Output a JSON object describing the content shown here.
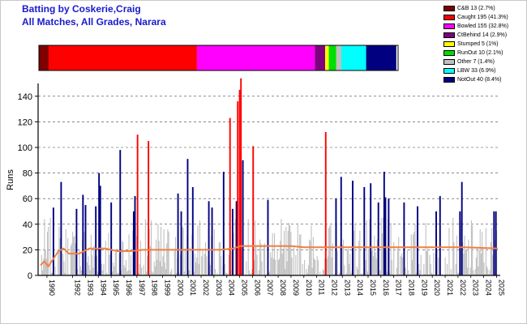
{
  "title_line1": "Batting by Coskerie,Craig",
  "title_line2": "All Matches, All Grades, Narara",
  "legend": [
    {
      "label": "C&B 13 (2.7%)",
      "color": "#800000",
      "fraction": 0.027
    },
    {
      "label": "Caught 195 (41.3%)",
      "color": "#ff0000",
      "fraction": 0.413
    },
    {
      "label": "Bowled 155 (32.8%)",
      "color": "#ff00ff",
      "fraction": 0.328
    },
    {
      "label": "CtBehind 14 (2.9%)",
      "color": "#800080",
      "fraction": 0.029
    },
    {
      "label": "Stumped 5 (1%)",
      "color": "#ffff00",
      "fraction": 0.01
    },
    {
      "label": "RunOut 10 (2.1%)",
      "color": "#00dd00",
      "fraction": 0.021
    },
    {
      "label": "Other 7 (1.4%)",
      "color": "#c0c0c0",
      "fraction": 0.014
    },
    {
      "label": "LBW 33 (6.9%)",
      "color": "#00ffff",
      "fraction": 0.069
    },
    {
      "label": "NotOut 40 (8.4%)",
      "color": "#000080",
      "fraction": 0.084
    }
  ],
  "chart_data": {
    "type": "bar",
    "ylabel": "Runs",
    "ylim": [
      0,
      150
    ],
    "yticks": [
      "0",
      "20",
      "40",
      "60",
      "80",
      "100",
      "120",
      "140"
    ],
    "grid": "horizontal dashed",
    "xlabels": [
      "1990",
      "1992",
      "1993",
      "1994",
      "1995",
      "1996",
      "1997",
      "1998",
      "1999",
      "2000",
      "2001",
      "2002",
      "2003",
      "2004",
      "2005",
      "2006",
      "2007",
      "2008",
      "2009",
      "2010",
      "2011",
      "2012",
      "2013",
      "2014",
      "2015",
      "2016",
      "2017",
      "2018",
      "2019",
      "2020",
      "2021",
      "2022",
      "2023",
      "2024",
      "2025"
    ],
    "xlabel_years": [
      1990,
      1992,
      1993,
      1994,
      1995,
      1996,
      1997,
      1998,
      1999,
      2000,
      2001,
      2002,
      2003,
      2004,
      2005,
      2006,
      2007,
      2008,
      2009,
      2010,
      2011,
      2012,
      2013,
      2014,
      2015,
      2016,
      2017,
      2018,
      2019,
      2020,
      2021,
      2022,
      2023,
      2024,
      2025
    ],
    "x_year_range": [
      1990,
      2025.6
    ],
    "highlight_bars": [
      {
        "year": 1991.0,
        "runs": 53,
        "type": "NotOut"
      },
      {
        "year": 1991.6,
        "runs": 73,
        "type": "NotOut"
      },
      {
        "year": 1992.8,
        "runs": 52,
        "type": "NotOut"
      },
      {
        "year": 1993.3,
        "runs": 63,
        "type": "NotOut"
      },
      {
        "year": 1993.5,
        "runs": 55,
        "type": "NotOut"
      },
      {
        "year": 1994.3,
        "runs": 54,
        "type": "NotOut"
      },
      {
        "year": 1994.55,
        "runs": 80,
        "type": "NotOut"
      },
      {
        "year": 1994.65,
        "runs": 70,
        "type": "NotOut"
      },
      {
        "year": 1995.5,
        "runs": 57,
        "type": "NotOut"
      },
      {
        "year": 1996.2,
        "runs": 98,
        "type": "NotOut"
      },
      {
        "year": 1997.25,
        "runs": 50,
        "type": "NotOut"
      },
      {
        "year": 1997.35,
        "runs": 62,
        "type": "NotOut"
      },
      {
        "year": 1997.55,
        "runs": 110,
        "type": "Caught"
      },
      {
        "year": 1998.4,
        "runs": 105,
        "type": "Caught"
      },
      {
        "year": 2000.7,
        "runs": 64,
        "type": "NotOut"
      },
      {
        "year": 2000.95,
        "runs": 50,
        "type": "NotOut"
      },
      {
        "year": 2001.45,
        "runs": 91,
        "type": "NotOut"
      },
      {
        "year": 2001.85,
        "runs": 69,
        "type": "NotOut"
      },
      {
        "year": 2003.1,
        "runs": 58,
        "type": "NotOut"
      },
      {
        "year": 2003.35,
        "runs": 53,
        "type": "NotOut"
      },
      {
        "year": 2004.25,
        "runs": 81,
        "type": "NotOut"
      },
      {
        "year": 2004.75,
        "runs": 123,
        "type": "Caught"
      },
      {
        "year": 2004.95,
        "runs": 52,
        "type": "NotOut"
      },
      {
        "year": 2005.25,
        "runs": 58,
        "type": "NotOut"
      },
      {
        "year": 2005.35,
        "runs": 136,
        "type": "Caught"
      },
      {
        "year": 2005.5,
        "runs": 145,
        "type": "Caught"
      },
      {
        "year": 2005.6,
        "runs": 154,
        "type": "Caught"
      },
      {
        "year": 2005.75,
        "runs": 90,
        "type": "NotOut"
      },
      {
        "year": 2006.55,
        "runs": 101,
        "type": "Caught"
      },
      {
        "year": 2007.7,
        "runs": 59,
        "type": "NotOut"
      },
      {
        "year": 2012.2,
        "runs": 112,
        "type": "Caught"
      },
      {
        "year": 2013.0,
        "runs": 60,
        "type": "NotOut"
      },
      {
        "year": 2013.4,
        "runs": 77,
        "type": "NotOut"
      },
      {
        "year": 2014.3,
        "runs": 74,
        "type": "NotOut"
      },
      {
        "year": 2015.2,
        "runs": 69,
        "type": "NotOut"
      },
      {
        "year": 2015.7,
        "runs": 72,
        "type": "NotOut"
      },
      {
        "year": 2016.3,
        "runs": 57,
        "type": "NotOut"
      },
      {
        "year": 2016.75,
        "runs": 81,
        "type": "NotOut"
      },
      {
        "year": 2016.85,
        "runs": 61,
        "type": "NotOut"
      },
      {
        "year": 2017.1,
        "runs": 60,
        "type": "NotOut"
      },
      {
        "year": 2018.3,
        "runs": 57,
        "type": "NotOut"
      },
      {
        "year": 2019.35,
        "runs": 54,
        "type": "NotOut"
      },
      {
        "year": 2020.8,
        "runs": 50,
        "type": "NotOut"
      },
      {
        "year": 2021.1,
        "runs": 62,
        "type": "NotOut"
      },
      {
        "year": 2022.65,
        "runs": 50,
        "type": "NotOut"
      },
      {
        "year": 2022.8,
        "runs": 73,
        "type": "NotOut"
      },
      {
        "year": 2025.3,
        "runs": 50,
        "type": "NotOut"
      },
      {
        "year": 2025.45,
        "runs": 50,
        "type": "NotOut"
      }
    ],
    "background_bars": {
      "color": "#c0c0c0",
      "count": 470,
      "typical_range": [
        0,
        45
      ]
    },
    "average_line": {
      "color": "#f08040",
      "points": [
        [
          1990.0,
          8
        ],
        [
          1990.3,
          11
        ],
        [
          1990.6,
          7
        ],
        [
          1991.0,
          13
        ],
        [
          1991.4,
          19
        ],
        [
          1991.8,
          21
        ],
        [
          1992.2,
          17
        ],
        [
          1993.0,
          17
        ],
        [
          1993.8,
          21
        ],
        [
          1995.0,
          21
        ],
        [
          1996.0,
          19
        ],
        [
          1997.0,
          19
        ],
        [
          1998.0,
          20
        ],
        [
          1999.0,
          20
        ],
        [
          2000.0,
          20
        ],
        [
          2001.0,
          20
        ],
        [
          2002.0,
          20
        ],
        [
          2003.0,
          20
        ],
        [
          2004.0,
          20
        ],
        [
          2005.0,
          21
        ],
        [
          2005.6,
          23
        ],
        [
          2006.5,
          23
        ],
        [
          2008.0,
          23
        ],
        [
          2009.5,
          23
        ],
        [
          2010.5,
          22
        ],
        [
          2012.0,
          22
        ],
        [
          2013.0,
          22
        ],
        [
          2015.0,
          22
        ],
        [
          2017.0,
          22
        ],
        [
          2019.0,
          22
        ],
        [
          2021.0,
          22
        ],
        [
          2023.0,
          22
        ],
        [
          2025.6,
          21
        ]
      ]
    }
  }
}
